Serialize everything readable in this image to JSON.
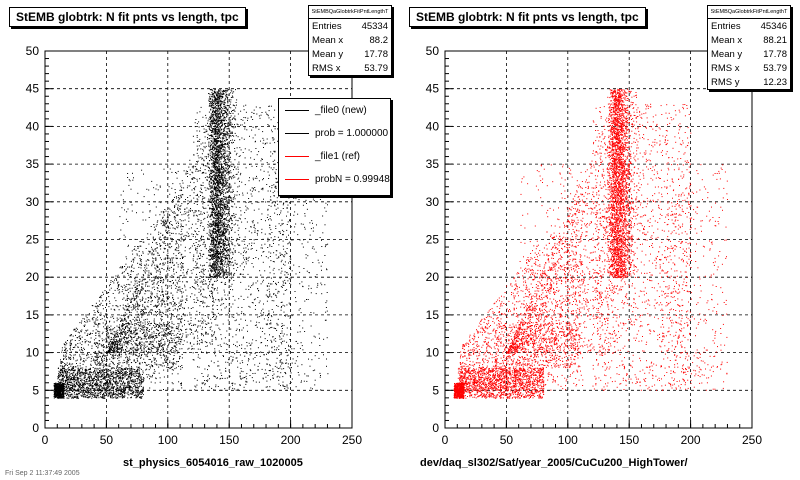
{
  "chart_data": [
    {
      "type": "scatter",
      "title": "StEMB globtrk: N fit pnts vs length, tpc",
      "xlabel": "st_physics_6054016_raw_1020005",
      "ylabel": "",
      "xlim": [
        0,
        250
      ],
      "ylim": [
        0,
        50
      ],
      "x_ticks": [
        "0",
        "50",
        "100",
        "150",
        "200",
        "250"
      ],
      "y_ticks": [
        "0",
        "5",
        "10",
        "15",
        "20",
        "25",
        "30",
        "35",
        "40",
        "45",
        "50"
      ],
      "grid": true,
      "marker_color": "#000000",
      "stats": {
        "title": "StEMBQaGlobtrkFitPntLengthT",
        "rows": [
          {
            "label": "Entries",
            "value": "45334"
          },
          {
            "label": "Mean x",
            "value": "88.2"
          },
          {
            "label": "Mean y",
            "value": "17.78"
          },
          {
            "label": "RMS x",
            "value": "53.79"
          }
        ]
      },
      "legend": [
        {
          "label": "_file0 (new)",
          "color": "#000000"
        },
        {
          "label": "prob = 1.000000",
          "color": "#000000"
        },
        {
          "label": "_file1 (ref)",
          "color": "#ff0000"
        },
        {
          "label": "probN = 0.99948",
          "color": "#ff0000"
        }
      ]
    },
    {
      "type": "scatter",
      "title": "StEMB globtrk: N fit pnts vs length, tpc",
      "xlabel": "dev/daq_sl302/Sat/year_2005/CuCu200_HighTower/",
      "ylabel": "",
      "xlim": [
        0,
        250
      ],
      "ylim": [
        0,
        50
      ],
      "x_ticks": [
        "0",
        "50",
        "100",
        "150",
        "200",
        "250"
      ],
      "y_ticks": [
        "0",
        "5",
        "10",
        "15",
        "20",
        "25",
        "30",
        "35",
        "40",
        "45",
        "50"
      ],
      "grid": true,
      "marker_color": "#ff0000",
      "stats": {
        "title": "StEMBQaGlobtrkFitPntLengthT",
        "rows": [
          {
            "label": "Entries",
            "value": "45346"
          },
          {
            "label": "Mean x",
            "value": "88.21"
          },
          {
            "label": "Mean y",
            "value": "17.78"
          },
          {
            "label": "RMS x",
            "value": "53.79"
          },
          {
            "label": "RMS y",
            "value": "12.23"
          }
        ]
      }
    }
  ],
  "footnote": "Fri Sep 2 11:37:49 2005"
}
